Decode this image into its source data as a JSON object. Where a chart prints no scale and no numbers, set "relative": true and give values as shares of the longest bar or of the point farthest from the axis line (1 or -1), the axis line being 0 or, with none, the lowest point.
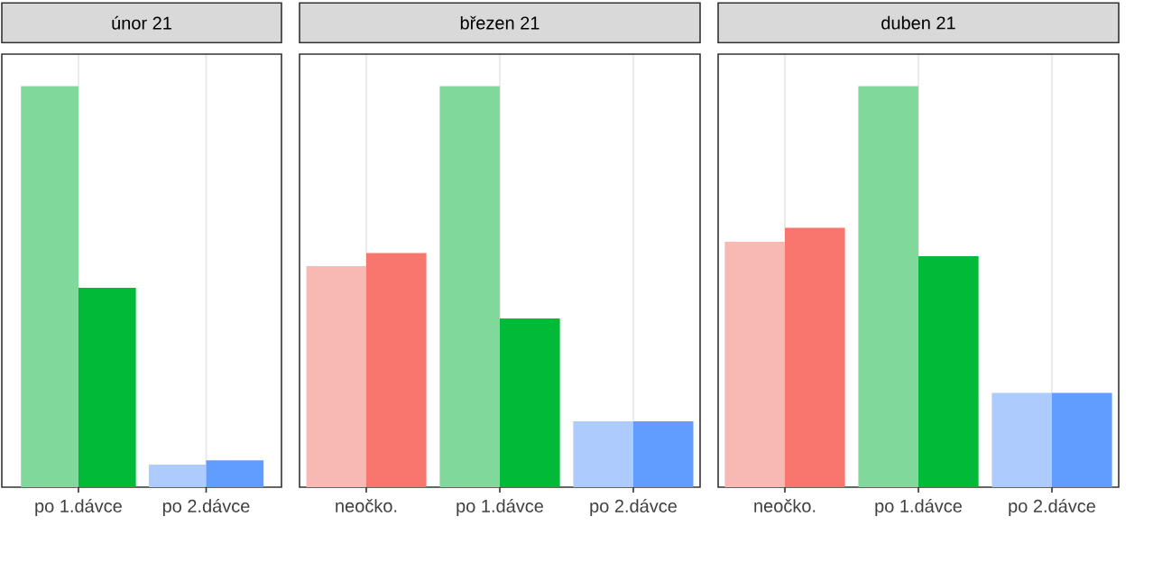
{
  "chart_data": [
    {
      "type": "bar",
      "title": "únor 21",
      "categories": [
        "po 1.dávce",
        "po 2.dávce"
      ],
      "relative": true,
      "grid": "x",
      "series": [
        {
          "colors": [
            "#80d99b",
            "#adcbfd"
          ],
          "values": [
            1,
            0.056
          ]
        },
        {
          "colors": [
            "#00ba38",
            "#619cff"
          ],
          "values": [
            0.497,
            0.067
          ]
        }
      ]
    },
    {
      "type": "bar",
      "title": "březen 21",
      "categories": [
        "neočko.",
        "po 1.dávce",
        "po 2.dávce"
      ],
      "relative": true,
      "grid": "x",
      "series": [
        {
          "colors": [
            "#f8b9b4",
            "#80d99b",
            "#adcbfd"
          ],
          "values": [
            0.551,
            1,
            0.164
          ]
        },
        {
          "colors": [
            "#f8766d",
            "#00ba38",
            "#619cff"
          ],
          "values": [
            0.584,
            0.421,
            0.164
          ]
        }
      ]
    },
    {
      "type": "bar",
      "title": "duben 21",
      "categories": [
        "neočko.",
        "po 1.dávce",
        "po 2.dávce"
      ],
      "relative": true,
      "grid": "x",
      "series": [
        {
          "colors": [
            "#f8b9b4",
            "#80d99b",
            "#adcbfd"
          ],
          "values": [
            0.612,
            1,
            0.235
          ]
        },
        {
          "colors": [
            "#f8766d",
            "#00ba38",
            "#619cff"
          ],
          "values": [
            0.647,
            0.576,
            0.235
          ]
        }
      ]
    }
  ]
}
